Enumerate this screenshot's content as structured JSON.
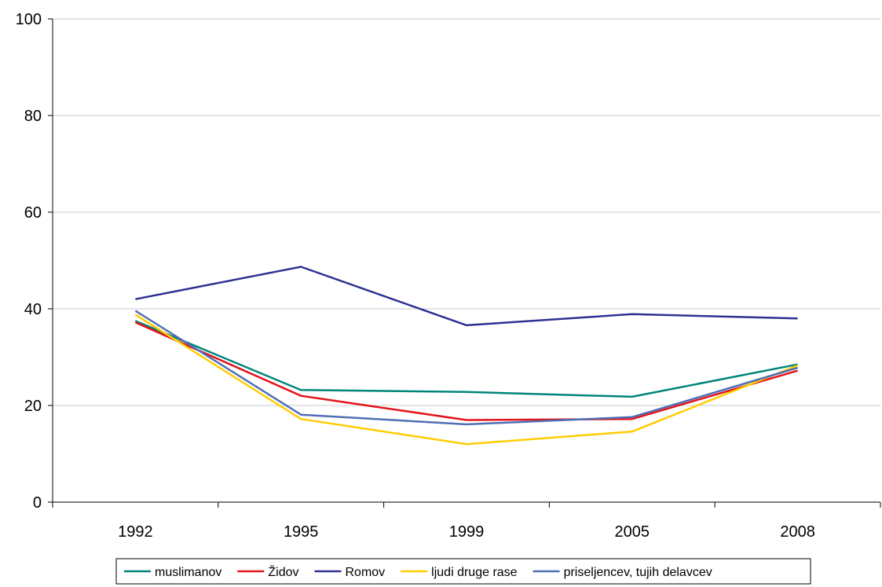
{
  "chart_data": {
    "type": "line",
    "categories": [
      "1992",
      "1995",
      "1999",
      "2005",
      "2008"
    ],
    "ylim": [
      0,
      100
    ],
    "yticks": [
      0,
      20,
      40,
      60,
      80,
      100
    ],
    "grid": true,
    "legend_position": "bottom",
    "series": [
      {
        "name": "muslimanov",
        "color": "#00857a",
        "values": [
          37.5,
          23.2,
          22.8,
          21.8,
          28.5
        ]
      },
      {
        "name": "Židov",
        "color": "#e3141b",
        "values": [
          37.2,
          22.0,
          17.0,
          17.2,
          27.2
        ]
      },
      {
        "name": "Romov",
        "color": "#2e3192",
        "values": [
          42.0,
          48.7,
          36.6,
          38.9,
          38.0
        ]
      },
      {
        "name": "ljudi druge rase",
        "color": "#ffcc00",
        "values": [
          38.8,
          17.2,
          12.0,
          14.6,
          28.3
        ]
      },
      {
        "name": "priseljencev, tujih delavcev",
        "color": "#4f6eb4",
        "values": [
          39.6,
          18.1,
          16.1,
          17.6,
          27.8
        ]
      }
    ]
  }
}
